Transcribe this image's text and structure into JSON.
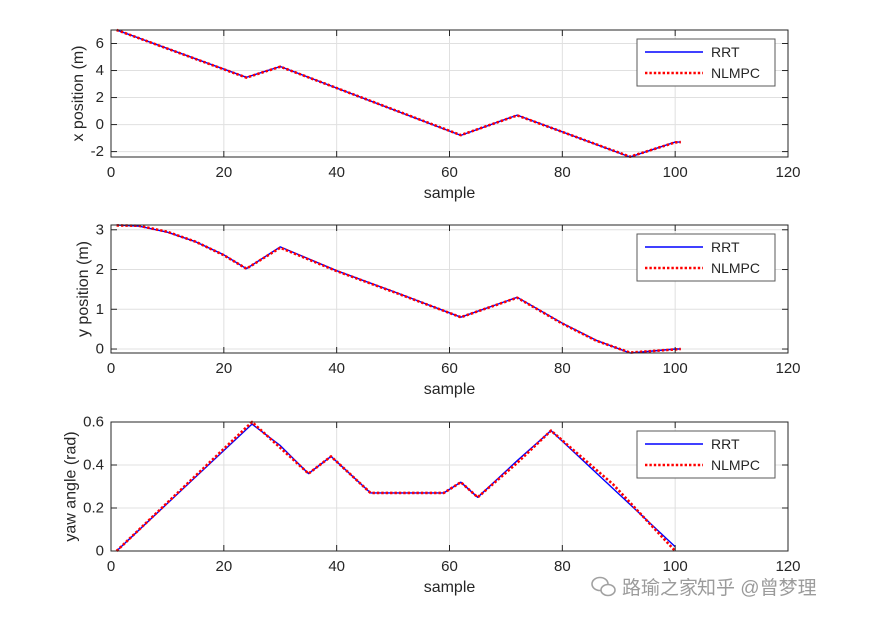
{
  "figure": {
    "watermark": {
      "icon": "wechat-icon",
      "text_primary": "路瑜之家",
      "text_secondary": "知乎 @曾梦理"
    }
  },
  "chart_data": [
    {
      "type": "line",
      "xlabel": "sample",
      "ylabel": "x position (m)",
      "xlim": [
        0,
        120
      ],
      "ylim": [
        -2.4,
        7
      ],
      "xticks": [
        0,
        20,
        40,
        60,
        80,
        100,
        120
      ],
      "yticks": [
        -2,
        0,
        2,
        4,
        6
      ],
      "grid": true,
      "legend_position": "top-right",
      "series": [
        {
          "name": "RRT",
          "color": "#0000ff",
          "line_style": "solid",
          "x": [
            1,
            24,
            30,
            62,
            72,
            92,
            100,
            101
          ],
          "y": [
            7.0,
            3.5,
            4.3,
            -0.8,
            0.7,
            -2.4,
            -1.3,
            -1.3
          ]
        },
        {
          "name": "NLMPC",
          "color": "#ff0000",
          "line_style": "dotted",
          "x": [
            1,
            24,
            30,
            62,
            72,
            92,
            100,
            101
          ],
          "y": [
            7.0,
            3.48,
            4.28,
            -0.78,
            0.68,
            -2.38,
            -1.32,
            -1.3
          ]
        }
      ]
    },
    {
      "type": "line",
      "xlabel": "sample",
      "ylabel": "y position (m)",
      "xlim": [
        0,
        120
      ],
      "ylim": [
        -0.1,
        3.12
      ],
      "xticks": [
        0,
        20,
        40,
        60,
        80,
        100,
        120
      ],
      "yticks": [
        0,
        1,
        2,
        3
      ],
      "grid": true,
      "legend_position": "top-right",
      "series": [
        {
          "name": "RRT",
          "color": "#0000ff",
          "line_style": "solid",
          "x": [
            1,
            5,
            10,
            15,
            20,
            24,
            30,
            40,
            50,
            62,
            72,
            80,
            86,
            92,
            96,
            100,
            101
          ],
          "y": [
            3.12,
            3.09,
            2.94,
            2.7,
            2.37,
            2.02,
            2.57,
            1.97,
            1.45,
            0.8,
            1.3,
            0.65,
            0.22,
            -0.1,
            -0.05,
            0.0,
            0.0
          ]
        },
        {
          "name": "NLMPC",
          "color": "#ff0000",
          "line_style": "dotted",
          "x": [
            1,
            5,
            10,
            15,
            20,
            24,
            30,
            40,
            50,
            62,
            72,
            80,
            86,
            92,
            96,
            100,
            101
          ],
          "y": [
            3.11,
            3.1,
            2.95,
            2.7,
            2.36,
            2.02,
            2.55,
            1.96,
            1.44,
            0.8,
            1.29,
            0.64,
            0.21,
            -0.09,
            -0.05,
            -0.01,
            0.0
          ]
        }
      ]
    },
    {
      "type": "line",
      "xlabel": "sample",
      "ylabel": "yaw angle (rad)",
      "xlim": [
        0,
        120
      ],
      "ylim": [
        0,
        0.6
      ],
      "xticks": [
        0,
        20,
        40,
        60,
        80,
        100,
        120
      ],
      "yticks": [
        0,
        0.2,
        0.4,
        0.6
      ],
      "grid": true,
      "legend_position": "top-right",
      "series": [
        {
          "name": "RRT",
          "color": "#0000ff",
          "line_style": "solid",
          "x": [
            1,
            25,
            30,
            35,
            39,
            46,
            59,
            62,
            65,
            72,
            78,
            89,
            100
          ],
          "y": [
            0.0,
            0.59,
            0.49,
            0.36,
            0.44,
            0.27,
            0.27,
            0.32,
            0.25,
            0.42,
            0.56,
            0.29,
            0.02
          ]
        },
        {
          "name": "NLMPC",
          "color": "#ff0000",
          "line_style": "dotted",
          "x": [
            1,
            25,
            30,
            35,
            39,
            46,
            59,
            62,
            65,
            72,
            78,
            89,
            100
          ],
          "y": [
            0.0,
            0.6,
            0.48,
            0.36,
            0.44,
            0.27,
            0.27,
            0.32,
            0.25,
            0.41,
            0.56,
            0.31,
            0.0
          ]
        }
      ]
    }
  ]
}
